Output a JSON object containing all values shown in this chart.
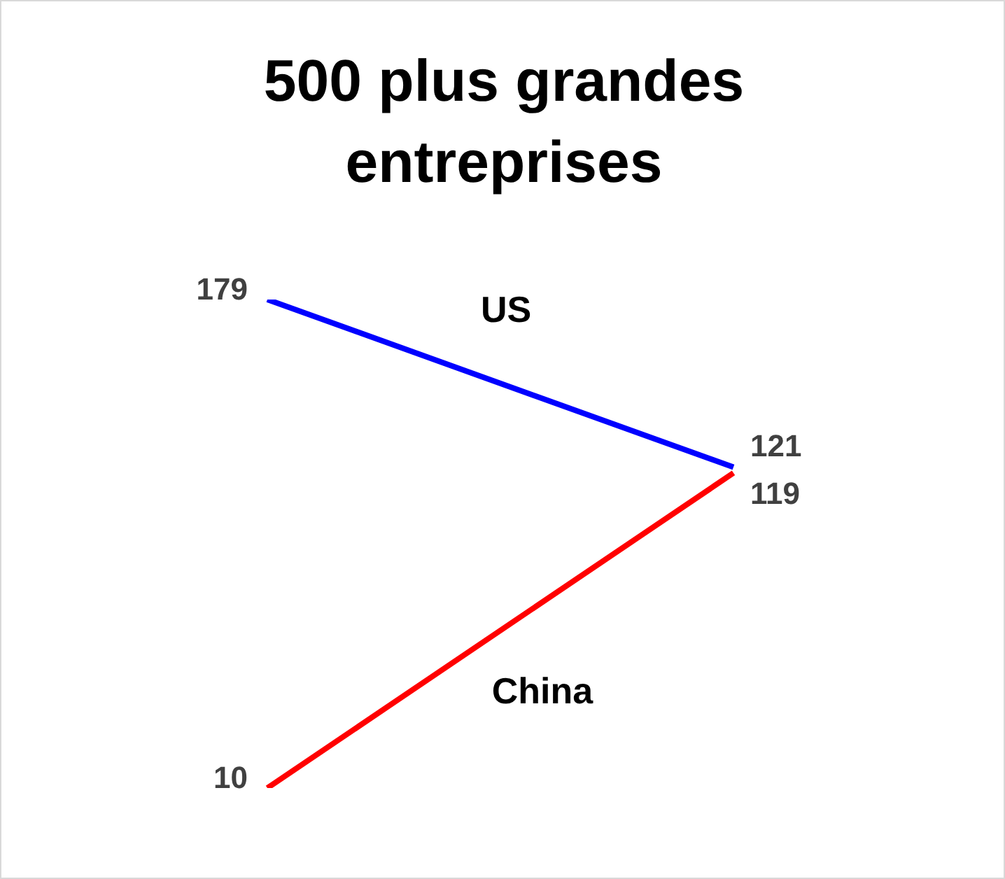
{
  "chart_data": {
    "type": "line",
    "title": "500 plus grandes entreprises",
    "categories": [
      null,
      null
    ],
    "series": [
      {
        "name": "US",
        "color": "#0000ff",
        "values": [
          179,
          121
        ]
      },
      {
        "name": "China",
        "color": "#ff0000",
        "values": [
          10,
          119
        ]
      }
    ],
    "data_labels": true,
    "legend": false,
    "grid": false,
    "marker": "none"
  }
}
